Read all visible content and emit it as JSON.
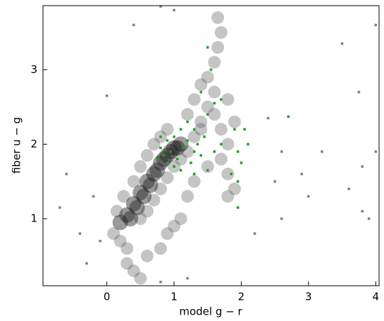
{
  "chart_data": {
    "type": "scatter",
    "x_label": "model g − r",
    "y_label": "fiber u − g",
    "xlim": [
      -0.95,
      4.05
    ],
    "ylim": [
      0.1,
      3.86
    ],
    "xticks": [
      0,
      1,
      2,
      3,
      4
    ],
    "yticks": [
      1,
      2,
      3
    ],
    "series": [
      {
        "color": "#5a5a5a",
        "x": [
          0.1,
          0.2,
          0.3,
          0.15,
          0.25,
          0.4,
          0.5,
          0.6,
          0.7,
          0.8,
          0.5,
          0.6,
          0.7,
          0.8,
          0.9,
          1.0,
          1.1,
          1.2,
          1.3,
          1.4,
          1.5,
          1.6,
          1.5,
          1.6,
          1.65,
          1.7,
          1.65,
          1.4,
          1.6,
          1.7,
          1.8,
          1.7,
          1.8,
          1.9,
          1.8,
          1.2,
          1.3,
          1.5,
          0.3,
          0.4,
          0.6,
          0.8,
          0.9,
          1.0,
          1.1,
          0.5,
          1.3,
          1.4,
          1.8,
          1.9,
          1.2,
          0.9
        ],
        "values": [
          0.8,
          0.7,
          0.6,
          1.1,
          1.3,
          1.5,
          1.7,
          1.85,
          2.0,
          2.1,
          1.0,
          1.1,
          1.25,
          1.4,
          1.55,
          1.7,
          1.8,
          1.9,
          2.1,
          2.3,
          2.5,
          2.7,
          2.9,
          3.1,
          3.3,
          3.5,
          3.7,
          2.2,
          2.4,
          2.2,
          2.0,
          1.8,
          1.6,
          1.4,
          1.3,
          1.3,
          1.5,
          1.7,
          0.4,
          0.3,
          0.5,
          0.6,
          0.8,
          0.9,
          1.0,
          0.2,
          2.6,
          2.8,
          2.6,
          2.3,
          2.4,
          2.2
        ]
      },
      {
        "color": "#1e1e1e",
        "x": [
          0.2,
          0.3,
          0.4,
          0.5,
          0.6,
          0.7,
          0.8,
          0.9,
          1.0,
          1.1,
          0.35,
          0.45,
          0.55,
          0.65,
          0.75,
          0.85,
          0.95,
          1.05
        ],
        "values": [
          0.95,
          1.05,
          1.2,
          1.35,
          1.5,
          1.6,
          1.75,
          1.85,
          1.95,
          2.0,
          1.0,
          1.15,
          1.3,
          1.45,
          1.65,
          1.8,
          1.9,
          1.95
        ]
      },
      {
        "color": "#808080",
        "x": [
          -0.6,
          -0.7,
          -0.2,
          -0.1,
          0.0,
          -0.3,
          0.4,
          0.8,
          1.0,
          2.4,
          2.6,
          2.9,
          3.2,
          3.5,
          3.6,
          3.75,
          3.8,
          4.0,
          4.0,
          3.8,
          3.9,
          2.6,
          0.8,
          1.2,
          2.2,
          -0.4,
          3.0,
          2.5
        ],
        "values": [
          1.6,
          1.15,
          1.3,
          0.7,
          2.65,
          0.4,
          3.6,
          3.85,
          3.8,
          2.35,
          1.9,
          1.6,
          1.9,
          3.35,
          1.4,
          2.7,
          1.7,
          3.6,
          1.9,
          1.1,
          1.0,
          1.0,
          0.15,
          0.2,
          0.8,
          0.8,
          1.3,
          1.5
        ]
      },
      {
        "color": "#1fa01f",
        "x": [
          0.8,
          0.85,
          0.9,
          0.95,
          1.0,
          1.05,
          1.1,
          1.15,
          1.2,
          1.25,
          1.3,
          0.9,
          1.0,
          1.1,
          1.2,
          1.3,
          1.35,
          0.8,
          0.75,
          1.4,
          1.45,
          1.5,
          1.6,
          1.55,
          1.5,
          1.4,
          1.7,
          1.9,
          1.95,
          2.0,
          1.95,
          1.85,
          2.05,
          2.1,
          2.7,
          1.3,
          1.6,
          1.5,
          1.95,
          1.7
        ],
        "values": [
          1.95,
          1.85,
          2.05,
          1.9,
          2.1,
          1.8,
          2.2,
          1.95,
          2.05,
          1.75,
          1.9,
          1.75,
          1.7,
          1.65,
          2.3,
          2.2,
          2.0,
          2.1,
          1.8,
          1.85,
          2.1,
          2.4,
          2.55,
          3.0,
          3.3,
          2.7,
          2.6,
          2.2,
          1.9,
          1.75,
          1.5,
          1.6,
          2.2,
          2.0,
          2.37,
          1.6,
          1.9,
          1.65,
          1.15,
          2.0
        ]
      }
    ]
  }
}
